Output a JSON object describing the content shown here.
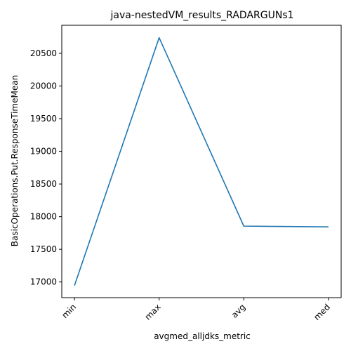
{
  "chart_data": {
    "type": "line",
    "title": "java-nestedVM_results_RADARGUNs1",
    "xlabel": "avgmed_alljdks_metric",
    "ylabel": "BasicOperations.Put.ResponseTimeMean",
    "categories": [
      "min",
      "max",
      "avg",
      "med"
    ],
    "series": [
      {
        "values": [
          16945,
          20740,
          17855,
          17843
        ]
      }
    ],
    "ylim": [
      16760,
      20930
    ],
    "yticks": [
      17000,
      17500,
      18000,
      18500,
      19000,
      19500,
      20000,
      20500
    ],
    "ytick_labels": [
      "17000",
      "17500",
      "18000",
      "18500",
      "19000",
      "19500",
      "20000",
      "20500"
    ],
    "grid": false,
    "line_color": "#1f77b4"
  }
}
